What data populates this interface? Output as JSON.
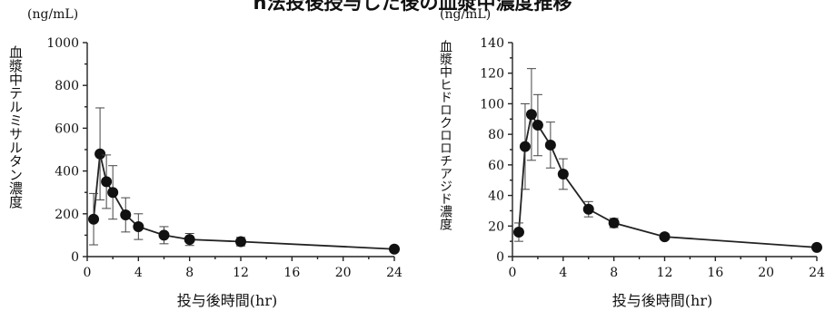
{
  "page": {
    "title": "n法投後授与した後の血漿中濃度推移"
  },
  "chart_data": [
    {
      "type": "line",
      "unit": "(ng/mL)",
      "ylabel": "血漿中テルミサルタン濃度",
      "xlabel": "投与後時間(hr)",
      "xlim": [
        0,
        24
      ],
      "ylim": [
        0,
        1000
      ],
      "xticks": [
        "0",
        "4",
        "8",
        "12",
        "16",
        "20",
        "24"
      ],
      "yticks": [
        "0",
        "200",
        "400",
        "600",
        "800",
        "1000"
      ],
      "series": [
        {
          "x": [
            0.5,
            1,
            1.5,
            2,
            3,
            4,
            6,
            8,
            12,
            24
          ],
          "y": [
            175,
            480,
            350,
            300,
            195,
            140,
            100,
            80,
            70,
            35
          ],
          "yerr": [
            120,
            215,
            125,
            125,
            80,
            60,
            40,
            28,
            20,
            8
          ]
        }
      ]
    },
    {
      "type": "line",
      "unit": "(ng/mL)",
      "ylabel": "血漿中ヒドロクロロチアジド濃度",
      "xlabel": "投与後時間(hr)",
      "xlim": [
        0,
        24
      ],
      "ylim": [
        0,
        140
      ],
      "xticks": [
        "0",
        "4",
        "8",
        "12",
        "16",
        "20",
        "24"
      ],
      "yticks": [
        "0",
        "20",
        "40",
        "60",
        "80",
        "100",
        "120",
        "140"
      ],
      "series": [
        {
          "x": [
            0.5,
            1,
            1.5,
            2,
            3,
            4,
            6,
            8,
            12,
            24
          ],
          "y": [
            16,
            72,
            93,
            86,
            73,
            54,
            31,
            22,
            13,
            6
          ],
          "yerr": [
            6,
            28,
            30,
            20,
            15,
            10,
            5,
            3,
            2,
            1
          ]
        }
      ]
    }
  ]
}
